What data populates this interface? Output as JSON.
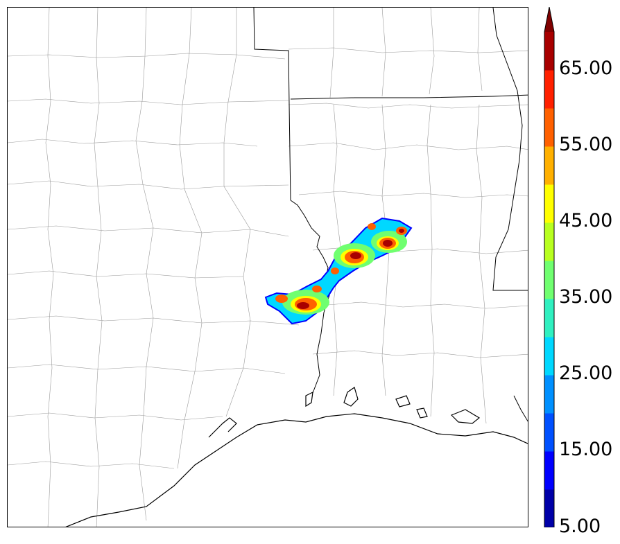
{
  "colorbar": {
    "labels": [
      "5.00",
      "15.00",
      "25.00",
      "35.00",
      "45.00",
      "55.00",
      "65.00"
    ],
    "colors": [
      "#0000a8",
      "#0000ff",
      "#0050ff",
      "#0090ff",
      "#00d8ff",
      "#30f0c0",
      "#70ff70",
      "#b8ff20",
      "#ffff00",
      "#ffb000",
      "#ff6000",
      "#ff2000",
      "#a80000"
    ],
    "extend_color": "#800000"
  },
  "map": {
    "storm_colors": {
      "outer": "#0000ff",
      "fill1": "#00d8ff",
      "fill2": "#70ff70",
      "fill3": "#ffff00",
      "fill4": "#ff6000",
      "core": "#a80000"
    },
    "line_colors": {
      "county": "#9a9a9a",
      "state": "#000000",
      "coast": "#000000"
    }
  }
}
